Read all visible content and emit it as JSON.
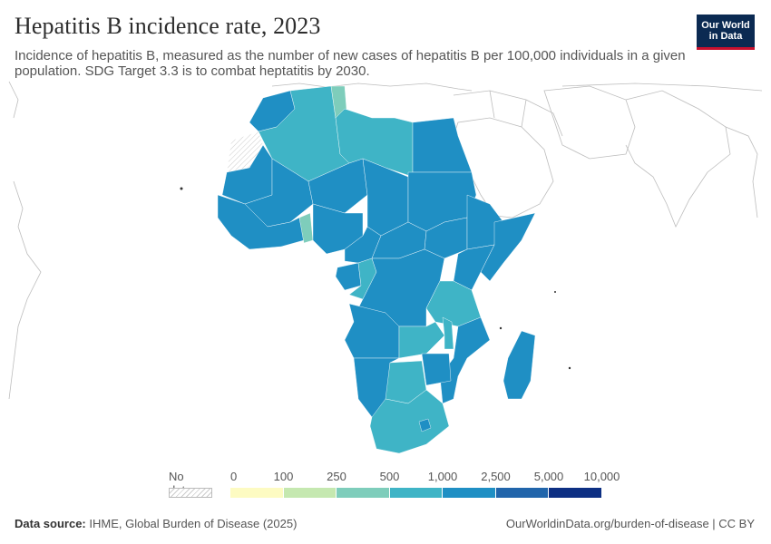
{
  "header": {
    "title": "Hepatitis B incidence rate, 2023",
    "subtitle": "Incidence of hepatitis B, measured as the number of new cases of hepatitis B per 100,000 individuals in a given population. SDG Target 3.3 is to combat heptatitis by 2030."
  },
  "logo": {
    "line1": "Our World",
    "line2": "in Data"
  },
  "legend": {
    "no_data_label": "No data",
    "ticks": [
      "0",
      "100",
      "250",
      "500",
      "1,000",
      "2,500",
      "5,000",
      "10,000"
    ],
    "colors": [
      "#fdfbc2",
      "#c5e8b0",
      "#7ecdbb",
      "#3fb4c6",
      "#1f8fc4",
      "#2165ab",
      "#0d2f83"
    ]
  },
  "map_data": {
    "metric": "Hepatitis B incidence per 100,000",
    "year": 2023,
    "bins": [
      "0-100",
      "100-250",
      "250-500",
      "500-1,000",
      "1,000-2,500",
      "2,500-5,000",
      "5,000-10,000"
    ],
    "regions": [
      {
        "name": "Morocco",
        "bin": "1,000-2,500"
      },
      {
        "name": "Western Sahara",
        "bin": "No data"
      },
      {
        "name": "Algeria",
        "bin": "500-1,000"
      },
      {
        "name": "Tunisia",
        "bin": "250-500"
      },
      {
        "name": "Libya",
        "bin": "500-1,000"
      },
      {
        "name": "Egypt",
        "bin": "1,000-2,500"
      },
      {
        "name": "Mauritania",
        "bin": "1,000-2,500"
      },
      {
        "name": "Mali",
        "bin": "1,000-2,500"
      },
      {
        "name": "Niger",
        "bin": "1,000-2,500"
      },
      {
        "name": "Chad",
        "bin": "1,000-2,500"
      },
      {
        "name": "Sudan",
        "bin": "1,000-2,500"
      },
      {
        "name": "West Africa",
        "bin": "1,000-2,500"
      },
      {
        "name": "Ghana",
        "bin": "250-500"
      },
      {
        "name": "Nigeria",
        "bin": "1,000-2,500"
      },
      {
        "name": "Cameroon",
        "bin": "1,000-2,500"
      },
      {
        "name": "Central African Republic",
        "bin": "1,000-2,500"
      },
      {
        "name": "South Sudan",
        "bin": "1,000-2,500"
      },
      {
        "name": "Ethiopia",
        "bin": "1,000-2,500"
      },
      {
        "name": "Somalia",
        "bin": "1,000-2,500"
      },
      {
        "name": "Kenya",
        "bin": "1,000-2,500"
      },
      {
        "name": "Gabon",
        "bin": "1,000-2,500"
      },
      {
        "name": "Congo",
        "bin": "500-1,000"
      },
      {
        "name": "DR Congo",
        "bin": "1,000-2,500"
      },
      {
        "name": "Tanzania",
        "bin": "500-1,000"
      },
      {
        "name": "Angola",
        "bin": "1,000-2,500"
      },
      {
        "name": "Zambia",
        "bin": "500-1,000"
      },
      {
        "name": "Malawi",
        "bin": "500-1,000"
      },
      {
        "name": "Mozambique",
        "bin": "1,000-2,500"
      },
      {
        "name": "Namibia",
        "bin": "1,000-2,500"
      },
      {
        "name": "Botswana",
        "bin": "500-1,000"
      },
      {
        "name": "Zimbabwe",
        "bin": "1,000-2,500"
      },
      {
        "name": "South Africa",
        "bin": "500-1,000"
      },
      {
        "name": "Lesotho",
        "bin": "1,000-2,500"
      },
      {
        "name": "Madagascar",
        "bin": "1,000-2,500"
      }
    ]
  },
  "footer": {
    "source_label": "Data source:",
    "source_text": "IHME, Global Burden of Disease (2025)",
    "url_text": "OurWorldinData.org/burden-of-disease | CC BY"
  }
}
